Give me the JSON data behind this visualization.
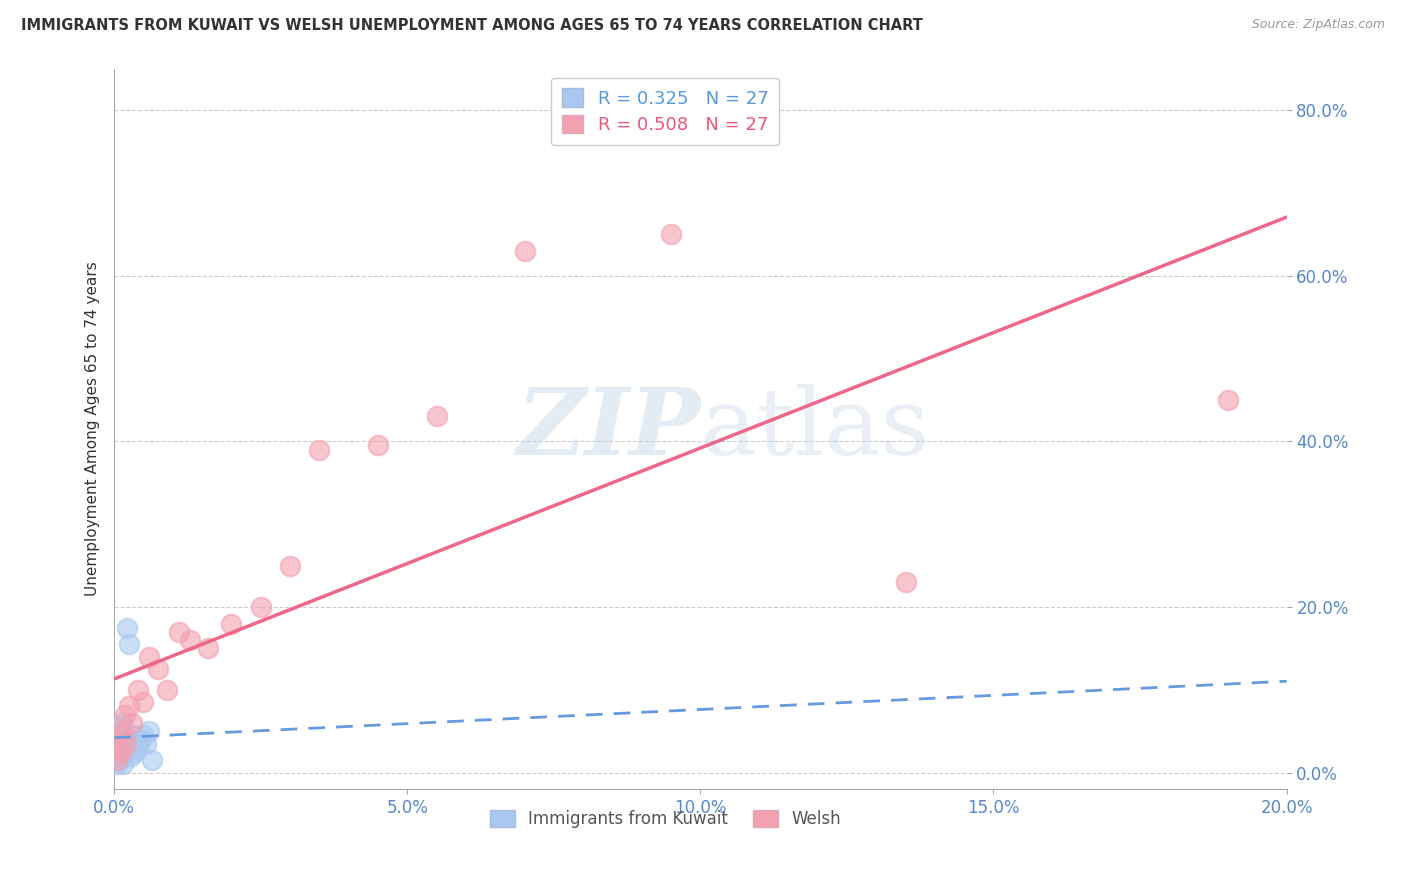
{
  "title": "IMMIGRANTS FROM KUWAIT VS WELSH UNEMPLOYMENT AMONG AGES 65 TO 74 YEARS CORRELATION CHART",
  "source": "Source: ZipAtlas.com",
  "ylabel": "Unemployment Among Ages 65 to 74 years",
  "x_tick_labels": [
    "0.0%",
    "5.0%",
    "10.0%",
    "15.0%",
    "20.0%"
  ],
  "x_tick_values": [
    0.0,
    5.0,
    10.0,
    15.0,
    20.0
  ],
  "y_tick_labels": [
    "0.0%",
    "20.0%",
    "40.0%",
    "60.0%",
    "80.0%"
  ],
  "y_tick_values": [
    0.0,
    20.0,
    40.0,
    60.0,
    80.0
  ],
  "xlim": [
    0,
    20
  ],
  "ylim": [
    -2,
    85
  ],
  "kuwait_R": 0.325,
  "kuwait_N": 27,
  "welsh_R": 0.508,
  "welsh_N": 27,
  "kuwait_color": "#a8c8f0",
  "welsh_color": "#f4a0b0",
  "kuwait_line_color": "#6699dd",
  "welsh_line_color": "#ee6688",
  "background_color": "#ffffff",
  "watermark_color": "#c8d8e8",
  "legend_kuwait_label": "Immigrants from Kuwait",
  "legend_welsh_label": "Welsh",
  "kuwait_x": [
    0.05,
    0.05,
    0.07,
    0.08,
    0.1,
    0.1,
    0.1,
    0.12,
    0.12,
    0.14,
    0.15,
    0.15,
    0.17,
    0.18,
    0.2,
    0.22,
    0.25,
    0.28,
    0.3,
    0.32,
    0.35,
    0.4,
    0.45,
    0.5,
    0.55,
    0.6,
    0.65
  ],
  "kuwait_y": [
    1.0,
    2.5,
    4.0,
    3.0,
    1.5,
    3.5,
    5.5,
    2.0,
    4.5,
    6.0,
    1.0,
    3.0,
    5.0,
    2.5,
    4.0,
    17.5,
    15.5,
    2.0,
    4.5,
    3.5,
    2.5,
    3.0,
    4.0,
    4.5,
    3.5,
    5.0,
    1.5
  ],
  "welsh_x": [
    0.05,
    0.08,
    0.1,
    0.12,
    0.15,
    0.18,
    0.2,
    0.25,
    0.3,
    0.4,
    0.5,
    0.6,
    0.75,
    0.9,
    1.1,
    1.3,
    1.6,
    2.0,
    2.5,
    3.0,
    3.5,
    4.5,
    5.5,
    7.0,
    9.5,
    13.5,
    19.0
  ],
  "welsh_y": [
    1.5,
    3.0,
    5.0,
    2.5,
    4.5,
    7.0,
    3.5,
    8.0,
    6.0,
    10.0,
    8.5,
    14.0,
    12.5,
    10.0,
    17.0,
    16.0,
    15.0,
    18.0,
    20.0,
    25.0,
    39.0,
    39.5,
    43.0,
    63.0,
    65.0,
    23.0,
    45.0
  ]
}
